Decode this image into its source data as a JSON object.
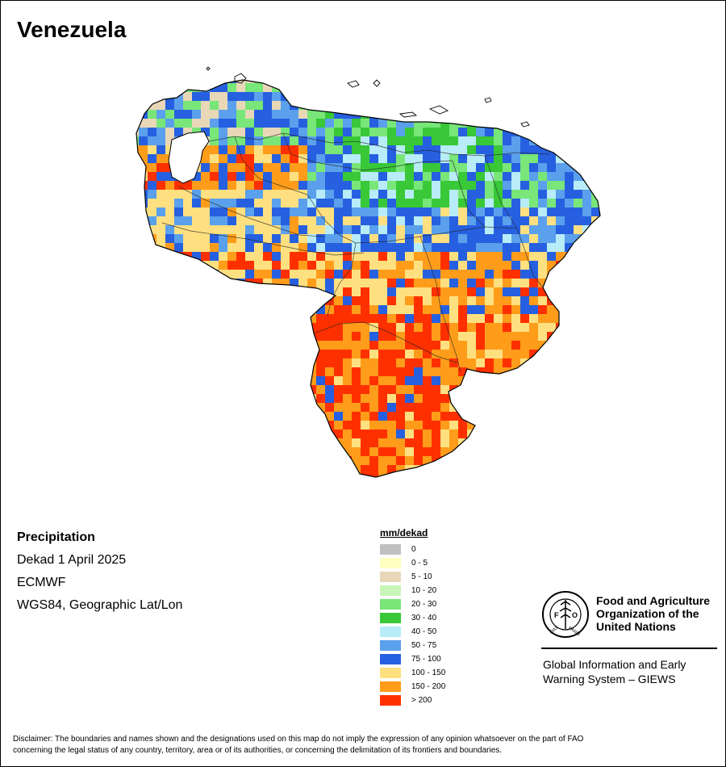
{
  "title": "Venezuela",
  "info": {
    "heading": "Precipitation",
    "lines": [
      "Dekad 1 April 2025",
      "ECMWF",
      "WGS84, Geographic Lat/Lon"
    ]
  },
  "legend": {
    "unit": "mm/dekad",
    "classes": [
      {
        "label": "0",
        "color": "#c0c0c0"
      },
      {
        "label": "0 - 5",
        "color": "#ffffc0"
      },
      {
        "label": "5 - 10",
        "color": "#e8d8b8"
      },
      {
        "label": "10 - 20",
        "color": "#c8f5b8"
      },
      {
        "label": "20 - 30",
        "color": "#78e678"
      },
      {
        "label": "30 - 40",
        "color": "#38c838"
      },
      {
        "label": "40 - 50",
        "color": "#b8ecf8"
      },
      {
        "label": "50 - 75",
        "color": "#5aa0ec"
      },
      {
        "label": "75 - 100",
        "color": "#2660e0"
      },
      {
        "label": "100 - 150",
        "color": "#ffe080"
      },
      {
        "label": "150 - 200",
        "color": "#ff9c1a"
      },
      {
        "label": "> 200",
        "color": "#ff3000"
      }
    ]
  },
  "fao": {
    "name_lines": [
      "Food and Agriculture",
      "Organization of the",
      "United Nations"
    ],
    "logo_text": [
      "FIAT",
      "PANIS"
    ],
    "system_lines": [
      "Global Information and Early",
      "Warning System – GIEWS"
    ]
  },
  "disclaimer": [
    "Disclaimer: The boundaries and names shown and the designations used on this map do not imply the expression of any opinion whatsoever on the part of FAO",
    "concerning the legal status of any country, territory, area or of its authorities, or concerning the delimitation of its frontiers and boundaries."
  ]
}
